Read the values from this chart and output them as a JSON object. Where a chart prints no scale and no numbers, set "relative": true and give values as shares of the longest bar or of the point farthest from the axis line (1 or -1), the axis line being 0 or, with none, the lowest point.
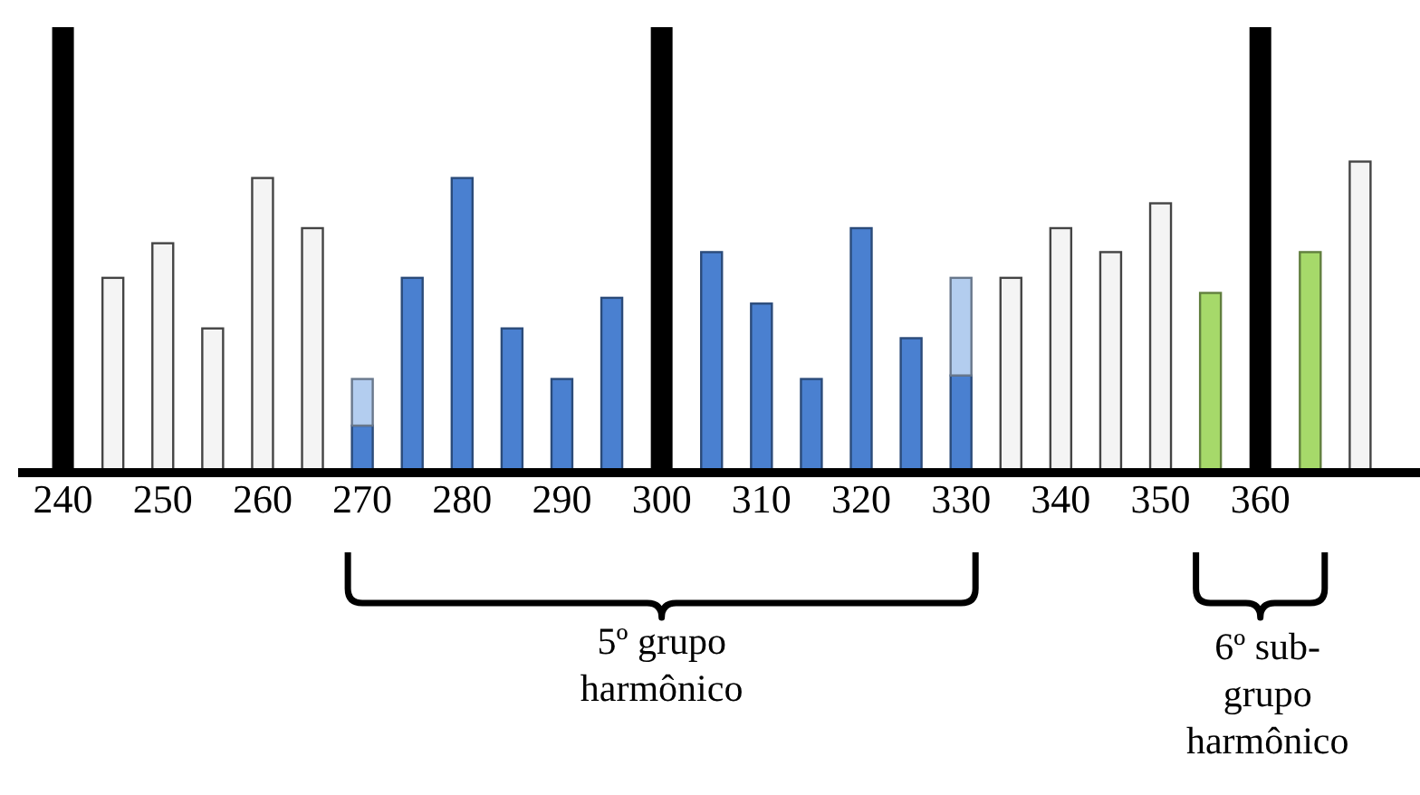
{
  "chart_data": {
    "type": "bar",
    "stacked": true,
    "relative": true,
    "x": [
      240,
      245,
      250,
      255,
      260,
      265,
      270,
      275,
      280,
      285,
      290,
      295,
      300,
      305,
      310,
      315,
      320,
      325,
      330,
      335,
      340,
      345,
      350,
      355,
      360,
      365,
      370
    ],
    "xlim": [
      235.5,
      376
    ],
    "xticks": [
      240,
      250,
      260,
      270,
      280,
      290,
      300,
      310,
      320,
      330,
      340,
      350,
      360
    ],
    "series": [
      {
        "color": "#000000",
        "values": [
          1,
          null,
          null,
          null,
          null,
          null,
          null,
          null,
          null,
          null,
          null,
          null,
          1,
          null,
          null,
          null,
          null,
          null,
          null,
          null,
          null,
          null,
          null,
          null,
          1,
          null,
          null
        ]
      },
      {
        "color": "#f4f4f4",
        "values": [
          null,
          0.435,
          0.513,
          0.321,
          0.66,
          0.547,
          null,
          null,
          null,
          null,
          null,
          null,
          null,
          null,
          null,
          null,
          null,
          null,
          null,
          0.435,
          0.547,
          0.493,
          0.603,
          null,
          null,
          null,
          0.697
        ]
      },
      {
        "color": "#4a80d0",
        "values": [
          null,
          null,
          null,
          null,
          null,
          null,
          0.102,
          0.435,
          0.66,
          0.321,
          0.207,
          0.39,
          null,
          0.493,
          0.377,
          0.207,
          0.547,
          0.299,
          0.215,
          null,
          null,
          null,
          null,
          null,
          null,
          null,
          null
        ]
      },
      {
        "color": "#b3cdef",
        "values": [
          null,
          null,
          null,
          null,
          null,
          null,
          0.105,
          null,
          null,
          null,
          null,
          null,
          null,
          null,
          null,
          null,
          null,
          null,
          0.22,
          null,
          null,
          null,
          null,
          null,
          null,
          null,
          null
        ]
      },
      {
        "color": "#a6d96a",
        "values": [
          null,
          null,
          null,
          null,
          null,
          null,
          null,
          null,
          null,
          null,
          null,
          null,
          null,
          null,
          null,
          null,
          null,
          null,
          null,
          null,
          null,
          null,
          null,
          0.401,
          null,
          0.493,
          null
        ]
      }
    ],
    "annotations": [
      "5º grupo harmônico",
      "6º sub-grupo harmônico"
    ]
  }
}
